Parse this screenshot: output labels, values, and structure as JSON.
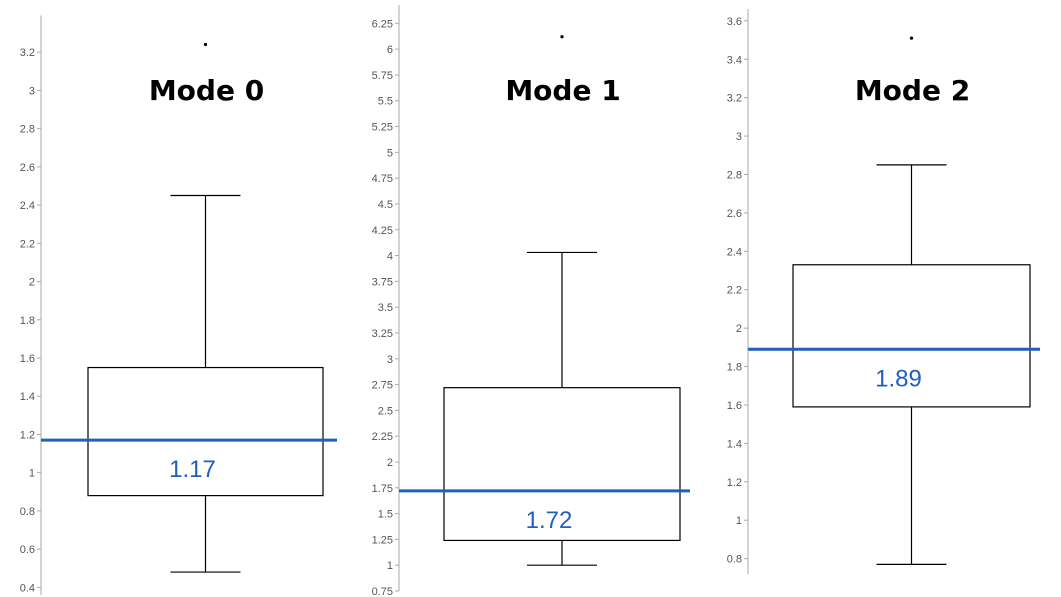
{
  "chart_data": [
    {
      "type": "box",
      "title": "Mode 0",
      "ylim": [
        0.36,
        3.35
      ],
      "yticks": [
        "0.4",
        "0.6",
        "0.8",
        "1",
        "1.2",
        "1.4",
        "1.6",
        "1.8",
        "2",
        "2.2",
        "2.4",
        "2.6",
        "2.8",
        "3",
        "3.2"
      ],
      "whisker_low": 0.48,
      "q1": 0.88,
      "q3": 1.55,
      "whisker_high": 2.45,
      "outlier": 3.24,
      "reference_line": 1.17,
      "reference_label": "1.17",
      "reference_color": "#1f5fbf"
    },
    {
      "type": "box",
      "title": "Mode 1",
      "ylim": [
        0.75,
        6.35
      ],
      "yticks": [
        "0.75",
        "1",
        "1.25",
        "1.5",
        "1.75",
        "2",
        "2.25",
        "2.5",
        "2.75",
        "3",
        "3.25",
        "3.5",
        "3.75",
        "4",
        "4.25",
        "4.5",
        "4.75",
        "5",
        "5.25",
        "5.5",
        "5.75",
        "6",
        "6.25"
      ],
      "whisker_low": 1.0,
      "q1": 1.24,
      "q3": 2.72,
      "whisker_high": 4.03,
      "outlier": 6.12,
      "reference_line": 1.72,
      "reference_label": "1.72",
      "reference_color": "#1f5fbf"
    },
    {
      "type": "box",
      "title": "Mode 2",
      "ylim": [
        0.72,
        3.62
      ],
      "yticks": [
        "0.8",
        "1",
        "1.2",
        "1.4",
        "1.6",
        "1.8",
        "2",
        "2.2",
        "2.4",
        "2.6",
        "2.8",
        "3",
        "3.2",
        "3.4",
        "3.6"
      ],
      "whisker_low": 0.77,
      "q1": 1.59,
      "q3": 2.33,
      "whisker_high": 2.85,
      "outlier": 3.51,
      "reference_line": 1.89,
      "reference_label": "1.89",
      "reference_color": "#1f5fbf"
    }
  ]
}
